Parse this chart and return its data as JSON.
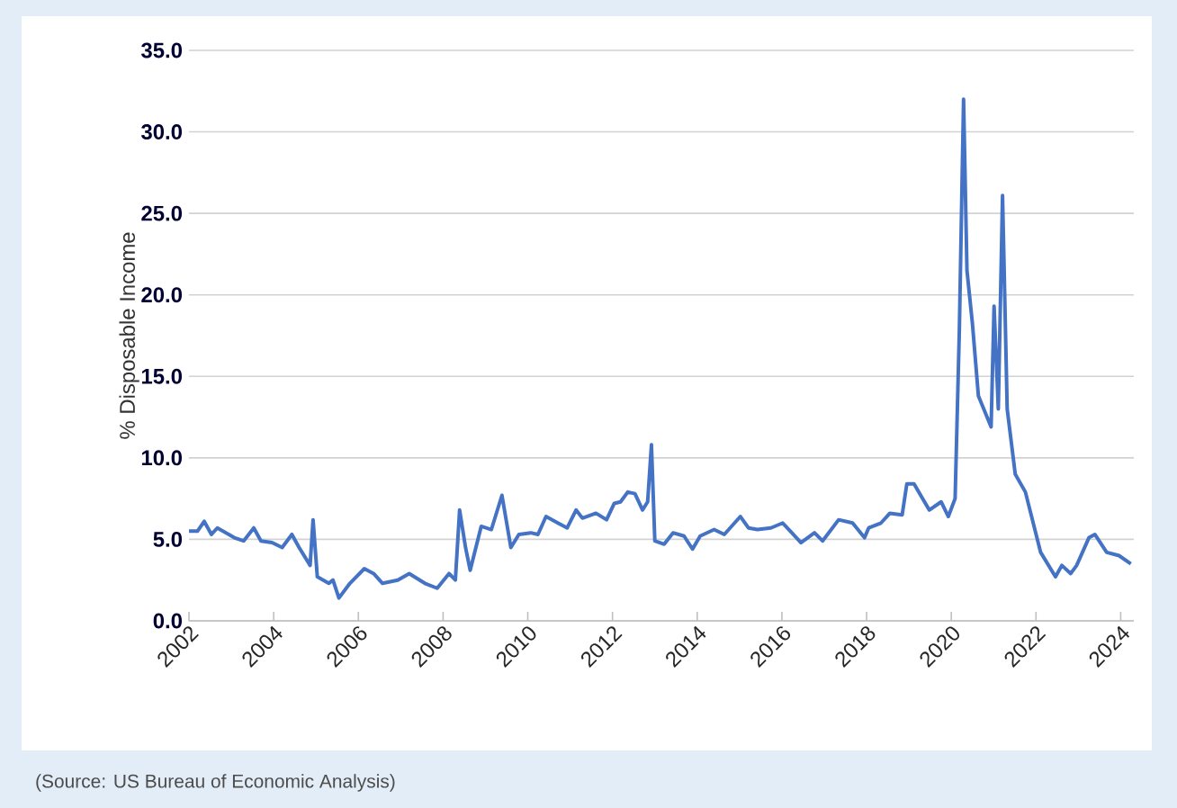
{
  "chart_data": {
    "type": "line",
    "ylabel": "% Disposable Income",
    "annotations": [
      "(Source: US Bureau of Economic Analysis)"
    ],
    "xlim": [
      2002,
      2024.31
    ],
    "xticks": [
      2002,
      2004,
      2006,
      2008,
      2010,
      2012,
      2014,
      2016,
      2018,
      2020,
      2022,
      2024
    ],
    "ylim": [
      0,
      35
    ],
    "yticks": [
      {
        "value": 0,
        "label": "0.0"
      },
      {
        "value": 5,
        "label": "5.0"
      },
      {
        "value": 10,
        "label": "10.0"
      },
      {
        "value": 15,
        "label": "15.0"
      },
      {
        "value": 20,
        "label": "20.0"
      },
      {
        "value": 25,
        "label": "25.0"
      },
      {
        "value": 30,
        "label": "30.0"
      },
      {
        "value": 35,
        "label": "35.0"
      }
    ],
    "grid": "y",
    "marker": "none",
    "line_style": "solid",
    "series": [
      {
        "color": "#4472c4",
        "x": [
          2002.0,
          2002.2,
          2002.36,
          2002.53,
          2002.67,
          2003.07,
          2003.29,
          2003.53,
          2003.7,
          2003.96,
          2004.2,
          2004.43,
          2004.6,
          2004.86,
          2004.93,
          2005.03,
          2005.3,
          2005.4,
          2005.54,
          2005.8,
          2006.14,
          2006.36,
          2006.57,
          2006.93,
          2007.2,
          2007.57,
          2007.86,
          2008.14,
          2008.29,
          2008.39,
          2008.53,
          2008.64,
          2008.9,
          2009.14,
          2009.39,
          2009.6,
          2009.79,
          2010.07,
          2010.24,
          2010.43,
          2010.71,
          2010.93,
          2011.14,
          2011.29,
          2011.61,
          2011.86,
          2012.04,
          2012.19,
          2012.36,
          2012.53,
          2012.71,
          2012.83,
          2012.92,
          2013.0,
          2013.22,
          2013.43,
          2013.69,
          2013.89,
          2014.07,
          2014.4,
          2014.64,
          2015.02,
          2015.21,
          2015.42,
          2015.74,
          2016.02,
          2016.2,
          2016.45,
          2016.77,
          2016.96,
          2017.34,
          2017.67,
          2017.95,
          2018.05,
          2018.34,
          2018.55,
          2018.84,
          2018.95,
          2019.12,
          2019.48,
          2019.76,
          2019.93,
          2020.09,
          2020.19,
          2020.29,
          2020.37,
          2020.5,
          2020.64,
          2020.94,
          2021.01,
          2021.11,
          2021.21,
          2021.32,
          2021.51,
          2021.75,
          2022.11,
          2022.46,
          2022.61,
          2022.82,
          2022.96,
          2023.25,
          2023.39,
          2023.67,
          2023.96,
          2024.24
        ],
        "values": [
          5.5,
          5.5,
          6.1,
          5.3,
          5.7,
          5.1,
          4.9,
          5.7,
          4.9,
          4.8,
          4.5,
          5.3,
          4.5,
          3.4,
          6.2,
          2.7,
          2.3,
          2.5,
          1.4,
          2.3,
          3.2,
          2.9,
          2.3,
          2.5,
          2.9,
          2.3,
          2.0,
          2.9,
          2.5,
          6.8,
          4.5,
          3.1,
          5.8,
          5.6,
          7.7,
          4.5,
          5.3,
          5.4,
          5.3,
          6.4,
          6.0,
          5.7,
          6.8,
          6.3,
          6.6,
          6.2,
          7.2,
          7.3,
          7.9,
          7.8,
          6.8,
          7.3,
          10.8,
          4.9,
          4.7,
          5.4,
          5.2,
          4.4,
          5.2,
          5.6,
          5.3,
          6.4,
          5.7,
          5.6,
          5.7,
          6.0,
          5.5,
          4.8,
          5.4,
          4.9,
          6.2,
          6.0,
          5.1,
          5.7,
          6.0,
          6.6,
          6.5,
          8.4,
          8.4,
          6.8,
          7.3,
          6.4,
          7.5,
          17.8,
          32.0,
          21.5,
          18.2,
          13.8,
          11.9,
          19.3,
          13.0,
          26.1,
          13.0,
          9.0,
          7.9,
          4.2,
          2.7,
          3.4,
          2.9,
          3.4,
          5.1,
          5.3,
          4.2,
          4.0,
          3.5
        ]
      }
    ]
  }
}
